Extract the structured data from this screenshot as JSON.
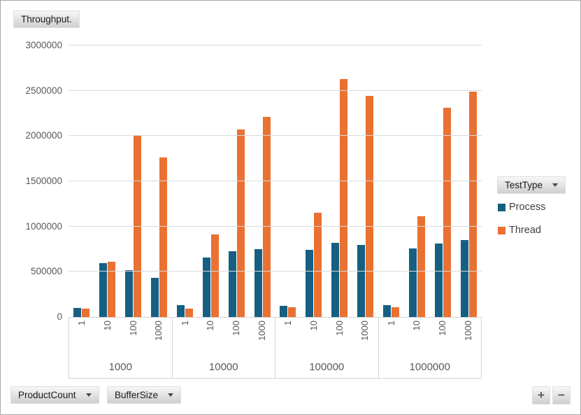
{
  "value_field_button": {
    "label": "Throughput."
  },
  "legend": {
    "field_button": {
      "label": "TestType"
    },
    "items": [
      {
        "name": "Process",
        "color": "#156082"
      },
      {
        "name": "Thread",
        "color": "#E97132"
      }
    ]
  },
  "axis_field_buttons": {
    "product_count": {
      "label": "ProductCount"
    },
    "buffer_size": {
      "label": "BufferSize"
    }
  },
  "zoom_controls": {
    "zoom_in": "+",
    "zoom_out": "−"
  },
  "chart_data": {
    "type": "bar",
    "title": "Throughput.",
    "value_field": "Throughput.",
    "ylim": [
      0,
      3000000
    ],
    "yticks": [
      0,
      500000,
      1000000,
      1500000,
      2000000,
      2500000,
      3000000
    ],
    "grid": true,
    "legend_position": "right",
    "group_field": "ProductCount",
    "category_field": "BufferSize",
    "group_labels": [
      "1000",
      "10000",
      "100000",
      "1000000"
    ],
    "categories_per_group": [
      "1",
      "10",
      "100",
      "1000"
    ],
    "series": [
      {
        "name": "Process",
        "color": "#156082",
        "values": [
          [
            100000,
            595000,
            515000,
            435000
          ],
          [
            130000,
            655000,
            725000,
            750000
          ],
          [
            120000,
            745000,
            820000,
            800000
          ],
          [
            130000,
            755000,
            810000,
            850000
          ]
        ]
      },
      {
        "name": "Thread",
        "color": "#E97132",
        "values": [
          [
            95000,
            610000,
            2010000,
            1765000
          ],
          [
            95000,
            915000,
            2075000,
            2215000
          ],
          [
            110000,
            1150000,
            2630000,
            2445000
          ],
          [
            110000,
            1115000,
            2310000,
            2490000
          ]
        ]
      }
    ]
  }
}
